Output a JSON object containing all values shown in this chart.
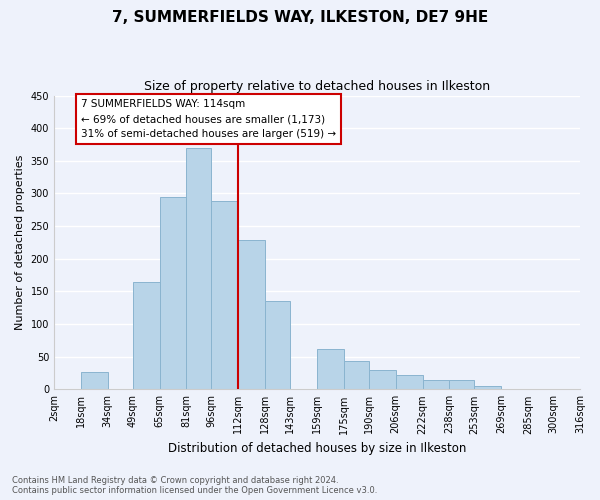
{
  "title": "7, SUMMERFIELDS WAY, ILKESTON, DE7 9HE",
  "subtitle": "Size of property relative to detached houses in Ilkeston",
  "xlabel": "Distribution of detached houses by size in Ilkeston",
  "ylabel": "Number of detached properties",
  "bar_color": "#b8d4e8",
  "bar_edge_color": "#8ab4cf",
  "vline_x": 112,
  "vline_color": "#cc0000",
  "annotation_title": "7 SUMMERFIELDS WAY: 114sqm",
  "annotation_line1": "← 69% of detached houses are smaller (1,173)",
  "annotation_line2": "31% of semi-detached houses are larger (519) →",
  "annotation_box_facecolor": "white",
  "annotation_box_edgecolor": "#cc0000",
  "ylim": [
    0,
    450
  ],
  "yticks": [
    0,
    50,
    100,
    150,
    200,
    250,
    300,
    350,
    400,
    450
  ],
  "bin_edges": [
    2,
    18,
    34,
    49,
    65,
    81,
    96,
    112,
    128,
    143,
    159,
    175,
    190,
    206,
    222,
    238,
    253,
    269,
    285,
    300,
    316
  ],
  "bin_labels": [
    "2sqm",
    "18sqm",
    "34sqm",
    "49sqm",
    "65sqm",
    "81sqm",
    "96sqm",
    "112sqm",
    "128sqm",
    "143sqm",
    "159sqm",
    "175sqm",
    "190sqm",
    "206sqm",
    "222sqm",
    "238sqm",
    "253sqm",
    "269sqm",
    "285sqm",
    "300sqm",
    "316sqm"
  ],
  "counts": [
    0,
    27,
    0,
    165,
    295,
    370,
    288,
    228,
    135,
    0,
    62,
    43,
    30,
    22,
    14,
    14,
    5,
    0,
    0,
    0
  ],
  "footer_line1": "Contains HM Land Registry data © Crown copyright and database right 2024.",
  "footer_line2": "Contains public sector information licensed under the Open Government Licence v3.0.",
  "background_color": "#eef2fb",
  "grid_color": "#ffffff",
  "title_fontsize": 11,
  "subtitle_fontsize": 9,
  "ylabel_fontsize": 8,
  "xlabel_fontsize": 8.5,
  "tick_fontsize": 7,
  "footer_fontsize": 6,
  "annotation_fontsize": 7.5
}
